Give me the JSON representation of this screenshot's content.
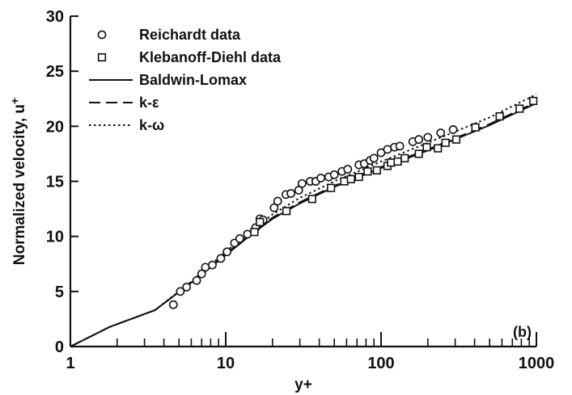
{
  "chart_data": {
    "type": "scatter",
    "xscale": "log",
    "xlim": [
      1,
      1000
    ],
    "ylim": [
      0,
      30
    ],
    "xlabel": "y+",
    "ylabel": "Normalized velocity, u",
    "ylabel_sup": "+",
    "panel_label": "(b)",
    "x_ticks": [
      1,
      10,
      100,
      1000
    ],
    "x_tick_labels": [
      "1",
      "10",
      "100",
      "1000"
    ],
    "y_ticks": [
      0,
      5,
      10,
      15,
      20,
      25,
      30
    ],
    "y_tick_labels": [
      "0",
      "5",
      "10",
      "15",
      "20",
      "25",
      "30"
    ],
    "legend_position": "top-left",
    "series": [
      {
        "name": "Reichardt data",
        "kind": "points",
        "marker": "circle",
        "x": [
          4.6,
          5.1,
          5.6,
          6.5,
          7.0,
          7.4,
          8.2,
          9.3,
          10.2,
          11.4,
          12.3,
          13.8,
          15.6,
          16.6,
          17.4,
          20.5,
          21.6,
          24.4,
          26.3,
          29.5,
          31.0,
          35.0,
          38.0,
          41.0,
          46.0,
          50.0,
          56.0,
          61.0,
          72.0,
          78.0,
          85.0,
          90.0,
          100.0,
          110.0,
          122.0,
          132.0,
          160.0,
          175.0,
          200.0,
          242.0,
          291.0
        ],
        "y": [
          3.8,
          5.0,
          5.4,
          6.0,
          6.6,
          7.2,
          7.4,
          8.0,
          8.6,
          9.4,
          9.8,
          10.2,
          10.8,
          11.6,
          11.5,
          12.6,
          13.2,
          13.8,
          13.9,
          14.2,
          14.8,
          15.0,
          15.0,
          15.3,
          15.4,
          15.6,
          15.9,
          16.1,
          16.5,
          16.6,
          16.9,
          17.1,
          17.6,
          17.9,
          18.1,
          18.2,
          18.6,
          18.8,
          19.0,
          19.4,
          19.7
        ]
      },
      {
        "name": "Klebanoff-Diehl data",
        "kind": "points",
        "marker": "square",
        "x": [
          15.3,
          16.6,
          24.6,
          36.0,
          47.6,
          58.0,
          64.0,
          72.0,
          82.0,
          94.0,
          110.0,
          116.0,
          128.0,
          142.0,
          175.0,
          197.0,
          232.0,
          260.0,
          305.0,
          405.0,
          580.0,
          780.0,
          955.0
        ],
        "y": [
          10.4,
          11.3,
          12.3,
          13.4,
          14.4,
          15.0,
          15.2,
          15.4,
          15.9,
          16.0,
          16.4,
          16.7,
          16.8,
          17.1,
          17.5,
          18.1,
          18.0,
          18.5,
          18.8,
          19.9,
          20.9,
          21.6,
          22.3
        ]
      },
      {
        "name": "Baldwin-Lomax",
        "kind": "line",
        "dash": "solid",
        "x": [
          1,
          1.8,
          3.5,
          6,
          10,
          15,
          20,
          30,
          50,
          100,
          200,
          500,
          1000
        ],
        "y": [
          0,
          1.8,
          3.3,
          5.8,
          8.3,
          10.3,
          11.6,
          13.0,
          14.5,
          16.2,
          17.8,
          20.1,
          22.1
        ]
      },
      {
        "name": "k-ε",
        "kind": "line",
        "dash": "dashed",
        "x": [
          1,
          1.8,
          3.5,
          6,
          10,
          15,
          20,
          30,
          50,
          100,
          200,
          500,
          1000
        ],
        "y": [
          0,
          1.8,
          3.3,
          5.8,
          8.4,
          10.4,
          11.7,
          13.1,
          14.6,
          16.3,
          17.9,
          20.2,
          22.2
        ]
      },
      {
        "name": "k-ω",
        "kind": "line",
        "dash": "dotted",
        "x": [
          1,
          1.8,
          3.5,
          6,
          10,
          15,
          20,
          30,
          50,
          100,
          200,
          500,
          1000
        ],
        "y": [
          0,
          1.8,
          3.3,
          5.9,
          8.6,
          10.7,
          12.0,
          13.5,
          15.0,
          16.8,
          18.5,
          20.8,
          22.9
        ]
      }
    ]
  }
}
